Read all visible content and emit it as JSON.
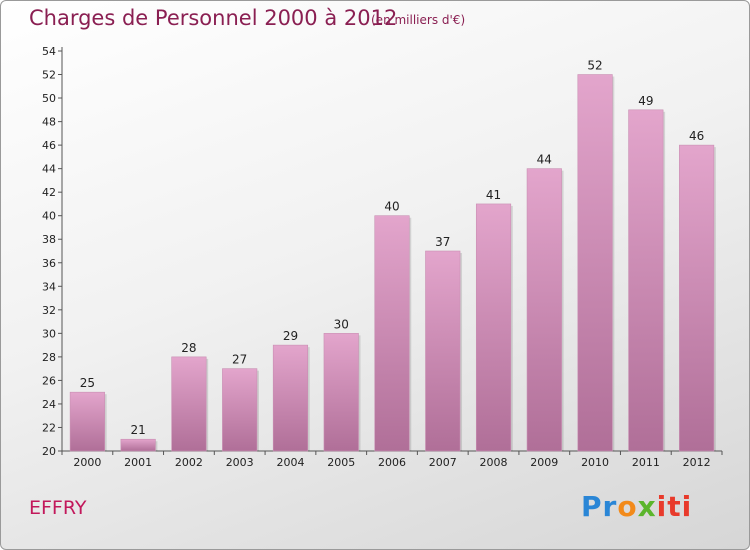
{
  "header": {
    "title": "Charges de Personnel 2000 à 2012",
    "subtitle": "(en milliers d'€)"
  },
  "footer": {
    "commune": "EFFRY",
    "brand": {
      "p1": "Pr",
      "p2": "o",
      "p3": "x",
      "p4": "iti"
    }
  },
  "colors": {
    "bar_top": "#e3a5cc",
    "bar_bottom": "#b06f98",
    "title": "#8a1f52",
    "commune": "#c2185b"
  },
  "chart_data": {
    "type": "bar",
    "title": "Charges de Personnel 2000 à 2012",
    "subtitle": "(en milliers d'€)",
    "xlabel": "",
    "ylabel": "",
    "categories": [
      "2000",
      "2001",
      "2002",
      "2003",
      "2004",
      "2005",
      "2006",
      "2007",
      "2008",
      "2009",
      "2010",
      "2011",
      "2012"
    ],
    "values": [
      25,
      21,
      28,
      27,
      29,
      30,
      40,
      37,
      41,
      44,
      52,
      49,
      46
    ],
    "ylim": [
      20,
      54
    ],
    "yticks": [
      20,
      22,
      24,
      26,
      28,
      30,
      32,
      34,
      36,
      38,
      40,
      42,
      44,
      46,
      48,
      50,
      52,
      54
    ],
    "grid": false,
    "legend": "none"
  }
}
